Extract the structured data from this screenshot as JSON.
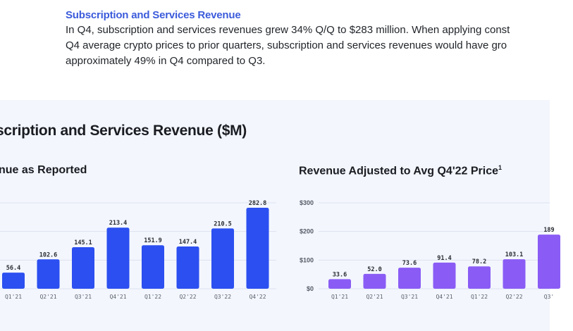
{
  "intro": {
    "title": "Subscription and Services Revenue",
    "lines": [
      "In Q4, subscription and services revenues grew 34% Q/Q to $283 million. When applying const",
      "Q4 average crypto prices to prior quarters, subscription and services revenues would have gro",
      "approximately 49% in Q4 compared to Q3."
    ]
  },
  "panel": {
    "title": "scription and Services Revenue ($M)"
  },
  "colors": {
    "reported_bar": "#2b4ff0",
    "adjusted_bar": "#8a5cf5"
  },
  "chart_data": [
    {
      "type": "bar",
      "title": "nue as Reported",
      "categories": [
        "Q1'21",
        "Q2'21",
        "Q3'21",
        "Q4'21",
        "Q1'22",
        "Q2'22",
        "Q3'22",
        "Q4'22"
      ],
      "values": [
        56.4,
        102.6,
        145.1,
        213.4,
        151.9,
        147.4,
        210.5,
        282.8
      ],
      "value_labels": [
        "56.4",
        "102.6",
        "145.1",
        "213.4",
        "151.9",
        "147.4",
        "210.5",
        "282.8"
      ],
      "xlabel": "",
      "ylabel": "",
      "ylim": [
        0,
        300
      ],
      "grid": true
    },
    {
      "type": "bar",
      "title": "Revenue Adjusted to Avg Q4'22 Price",
      "title_footnote": "1",
      "categories": [
        "Q1'21",
        "Q2'21",
        "Q3'21",
        "Q4'21",
        "Q1'22",
        "Q2'22",
        "Q3'"
      ],
      "values": [
        33.6,
        52.0,
        73.6,
        91.4,
        78.2,
        103.1,
        189
      ],
      "value_labels": [
        "33.6",
        "52.0",
        "73.6",
        "91.4",
        "78.2",
        "103.1",
        "189"
      ],
      "yticks": [
        "$0",
        "$100",
        "$200",
        "$300"
      ],
      "ytick_values": [
        0,
        100,
        200,
        300
      ],
      "xlabel": "",
      "ylabel": "",
      "ylim": [
        0,
        300
      ],
      "grid": true
    }
  ]
}
